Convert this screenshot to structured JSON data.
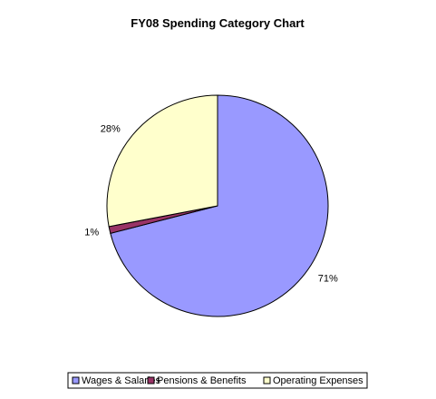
{
  "chart_data": {
    "type": "pie",
    "title": "FY08 Spending Category Chart",
    "categories": [
      "Wages & Salaries",
      "Pensions & Benefits",
      "Operating Expenses"
    ],
    "values": [
      71,
      1,
      28
    ],
    "labels": [
      "71%",
      "1%",
      "28%"
    ],
    "colors": [
      "#9999ff",
      "#993366",
      "#ffffcc"
    ],
    "legend": "bottom"
  }
}
